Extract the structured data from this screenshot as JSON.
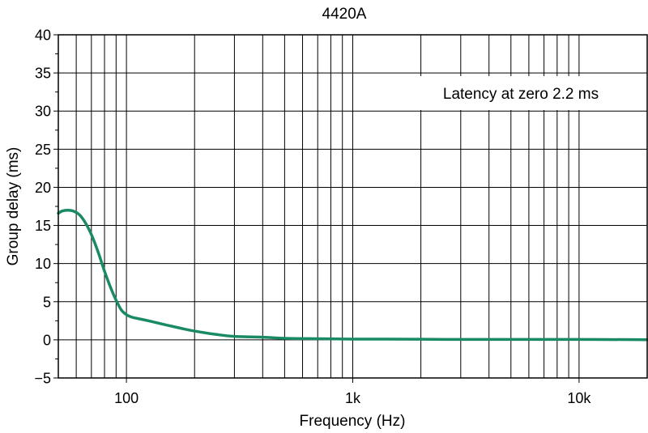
{
  "chart_data": {
    "type": "line",
    "title": "4420A",
    "xlabel": "Frequency (Hz)",
    "ylabel": "Group delay (ms)",
    "x_scale": "log",
    "xlim": [
      50,
      20000
    ],
    "ylim": [
      -5,
      40
    ],
    "grid": true,
    "annotation": "Latency at zero 2.2 ms",
    "xticks": [
      {
        "value": 100,
        "label": "100"
      },
      {
        "value": 1000,
        "label": "1k"
      },
      {
        "value": 10000,
        "label": "10k"
      }
    ],
    "yticks": [
      {
        "value": 40,
        "label": "40"
      },
      {
        "value": 35,
        "label": "35"
      },
      {
        "value": 30,
        "label": "30"
      },
      {
        "value": 25,
        "label": "25"
      },
      {
        "value": 20,
        "label": "20"
      },
      {
        "value": 15,
        "label": "15"
      },
      {
        "value": 10,
        "label": "10"
      },
      {
        "value": 5,
        "label": "5"
      },
      {
        "value": 0,
        "label": "0"
      },
      {
        "value": -5,
        "label": "−5"
      }
    ],
    "series": [
      {
        "color": "#1a8a66",
        "points": [
          [
            50,
            16.6
          ],
          [
            52,
            16.9
          ],
          [
            55,
            17.0
          ],
          [
            58,
            16.9
          ],
          [
            62,
            16.4
          ],
          [
            66,
            15.3
          ],
          [
            70,
            13.8
          ],
          [
            75,
            11.5
          ],
          [
            80,
            9.0
          ],
          [
            85,
            6.9
          ],
          [
            90,
            5.2
          ],
          [
            95,
            3.9
          ],
          [
            100,
            3.3
          ],
          [
            105,
            3.0
          ],
          [
            110,
            2.85
          ],
          [
            125,
            2.5
          ],
          [
            150,
            1.95
          ],
          [
            175,
            1.5
          ],
          [
            200,
            1.15
          ],
          [
            250,
            0.7
          ],
          [
            300,
            0.45
          ],
          [
            400,
            0.35
          ],
          [
            500,
            0.2
          ],
          [
            700,
            0.15
          ],
          [
            1000,
            0.1
          ],
          [
            2000,
            0.08
          ],
          [
            3000,
            0.05
          ],
          [
            5000,
            0.05
          ],
          [
            10000,
            0.05
          ],
          [
            20000,
            0.02
          ]
        ]
      }
    ]
  }
}
